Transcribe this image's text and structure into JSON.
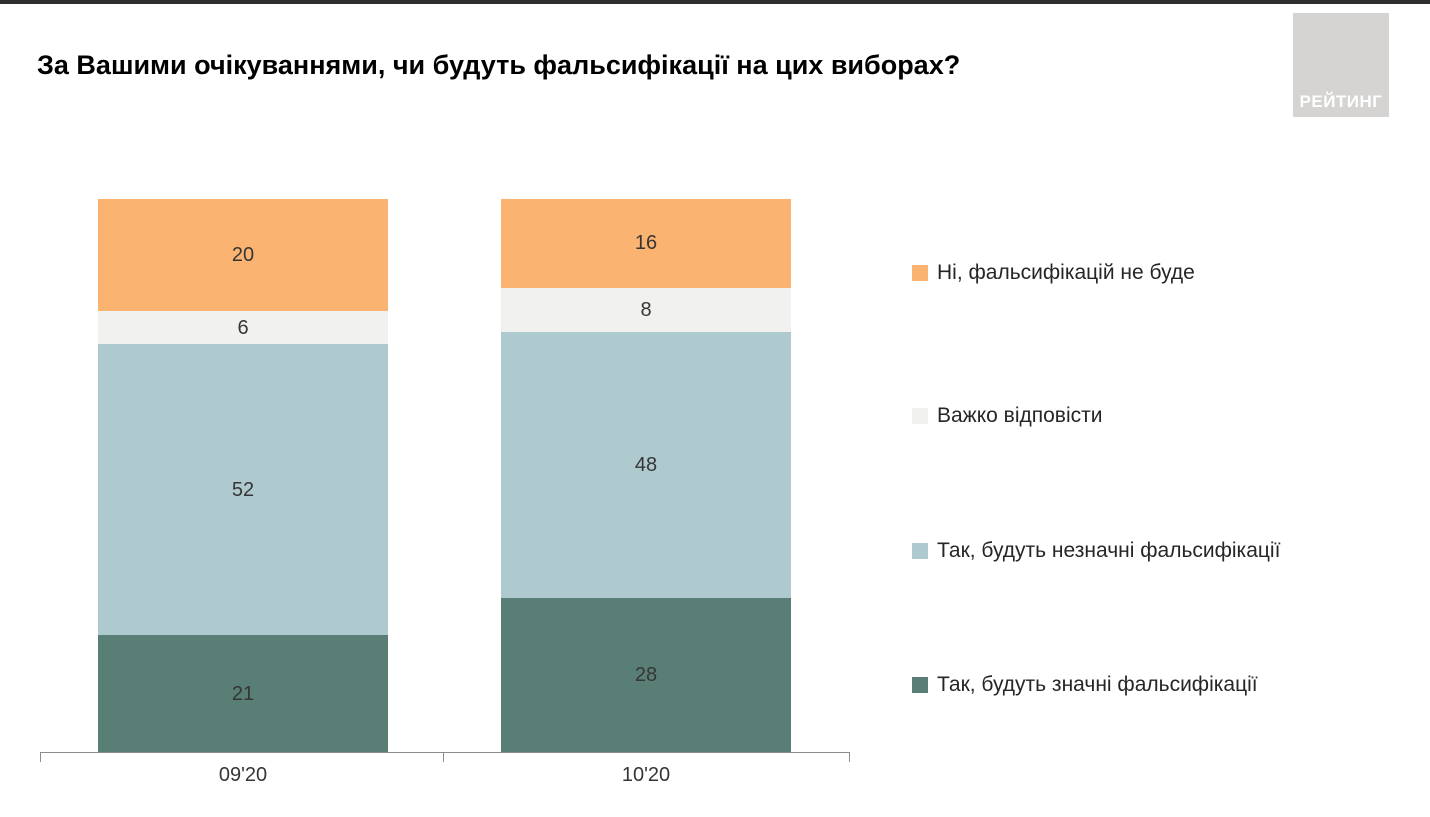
{
  "title": "За Вашими очікуваннями, чи будуть фальсифікації на цих виборах?",
  "logo": {
    "text": "РЕЙТИНГ"
  },
  "chart_data": {
    "type": "bar",
    "stacked": true,
    "unit": "percent",
    "title": "За Вашими очікуваннями, чи будуть фальсифікації на цих виборах?",
    "categories": [
      "09'20",
      "10'20"
    ],
    "series": [
      {
        "name": "Так, будуть значні фальсифікації",
        "color": "#587e75",
        "values": [
          21,
          28
        ]
      },
      {
        "name": "Так, будуть незначні фальсифікації",
        "color": "#aecacf",
        "values": [
          52,
          48
        ]
      },
      {
        "name": "Важко відповісти",
        "color": "#f1f1ef",
        "values": [
          6,
          8
        ]
      },
      {
        "name": "Ні, фальсифікацій не буде",
        "color": "#fbb371",
        "values": [
          20,
          16
        ]
      }
    ],
    "legend": [
      {
        "label": "Ні, фальсифікацій не буде",
        "color": "#fbb371"
      },
      {
        "label": "Важко відповісти",
        "color": "#f1f1ef"
      },
      {
        "label": "Так, будуть незначні фальсифікації",
        "color": "#aecacf"
      },
      {
        "label": "Так, будуть значні фальсифікації",
        "color": "#587e75"
      }
    ],
    "legend_position": "right",
    "grid": false,
    "xlabel": "",
    "ylabel": "",
    "ylim": [
      0,
      100
    ]
  }
}
